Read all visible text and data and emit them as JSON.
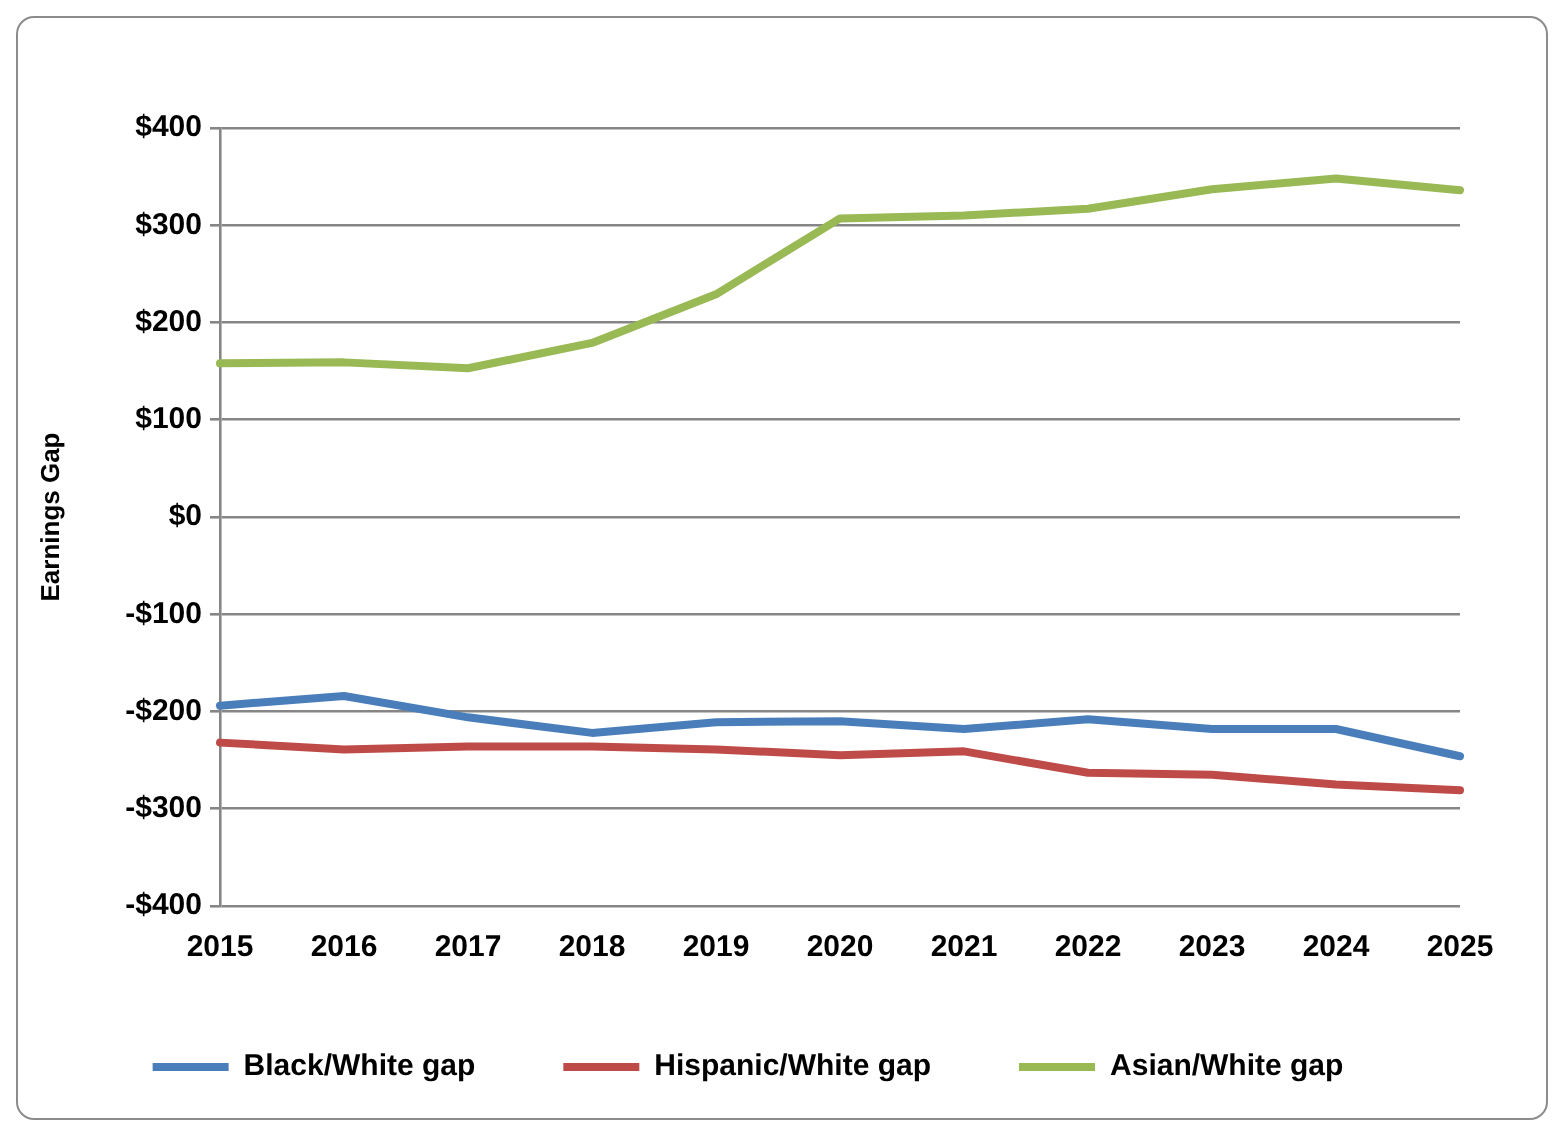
{
  "chart_data": {
    "type": "line",
    "categories": [
      "2015",
      "2016",
      "2017",
      "2018",
      "2019",
      "2020",
      "2021",
      "2022",
      "2023",
      "2024",
      "2025"
    ],
    "series": [
      {
        "name": "Black/White gap",
        "color": "#4a7ebb",
        "values": [
          -194,
          -184,
          -206,
          -222,
          -211,
          -210,
          -218,
          -208,
          -218,
          -218,
          -246
        ]
      },
      {
        "name": "Hispanic/White gap",
        "color": "#be4b48",
        "values": [
          -232,
          -239,
          -236,
          -236,
          -239,
          -245,
          -241,
          -263,
          -265,
          -275,
          -281
        ]
      },
      {
        "name": "Asian/White gap",
        "color": "#98b954",
        "values": [
          158,
          159,
          153,
          179,
          229,
          307,
          310,
          317,
          337,
          348,
          336
        ]
      }
    ],
    "ylabel": "Earnings Gap",
    "ylim": [
      -400,
      400
    ],
    "yticks": [
      {
        "value": -400,
        "label": "-$400"
      },
      {
        "value": -300,
        "label": "-$300"
      },
      {
        "value": -200,
        "label": "-$200"
      },
      {
        "value": -100,
        "label": "-$100"
      },
      {
        "value": 0,
        "label": "$0"
      },
      {
        "value": 100,
        "label": "$100"
      },
      {
        "value": 200,
        "label": "$200"
      },
      {
        "value": 300,
        "label": "$300"
      },
      {
        "value": 400,
        "label": "$400"
      }
    ],
    "grid": "y",
    "legend": "bottom"
  }
}
